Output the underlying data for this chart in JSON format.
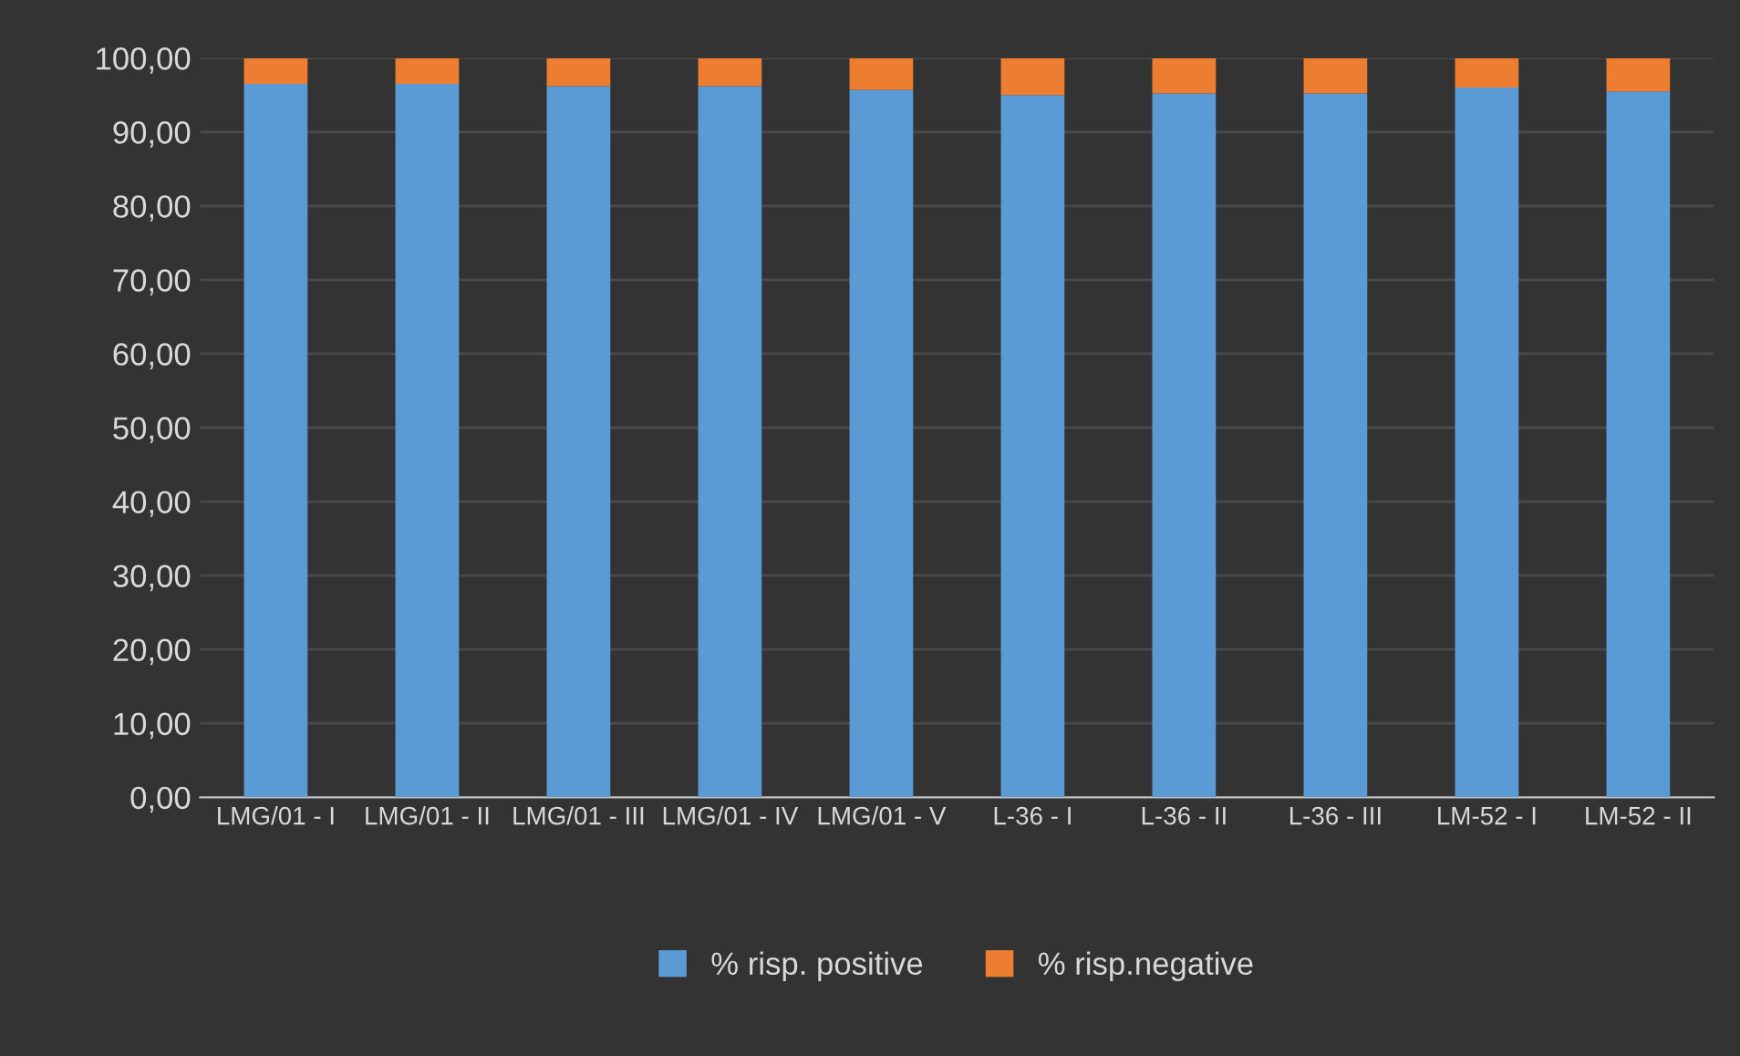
{
  "chart_data": {
    "type": "bar",
    "stacked": true,
    "categories": [
      "LMG/01 - I",
      "LMG/01 - II",
      "LMG/01 - III",
      "LMG/01 - IV",
      "LMG/01 - V",
      "L-36 - I",
      "L-36 - II",
      "L-36 - III",
      "LM-52 - I",
      "LM-52 - II"
    ],
    "series": [
      {
        "name": "% risp. positive",
        "color": "#5b9bd5",
        "values": [
          96.5,
          96.5,
          96.2,
          96.2,
          95.7,
          95.0,
          95.2,
          95.2,
          96.0,
          95.5
        ]
      },
      {
        "name": "% risp.negative",
        "color": "#ed7d31",
        "values": [
          3.5,
          3.5,
          3.8,
          3.8,
          4.3,
          5.0,
          4.8,
          4.8,
          4.0,
          4.5
        ]
      }
    ],
    "ylim": [
      0,
      100
    ],
    "yticks": [
      {
        "value": 0,
        "label": "0,00"
      },
      {
        "value": 10,
        "label": "10,00"
      },
      {
        "value": 20,
        "label": "20,00"
      },
      {
        "value": 30,
        "label": "30,00"
      },
      {
        "value": 40,
        "label": "40,00"
      },
      {
        "value": 50,
        "label": "50,00"
      },
      {
        "value": 60,
        "label": "60,00"
      },
      {
        "value": 70,
        "label": "70,00"
      },
      {
        "value": 80,
        "label": "80,00"
      },
      {
        "value": 90,
        "label": "90,00"
      },
      {
        "value": 100,
        "label": "100,00"
      }
    ],
    "grid": "y",
    "legend": "bottom"
  }
}
